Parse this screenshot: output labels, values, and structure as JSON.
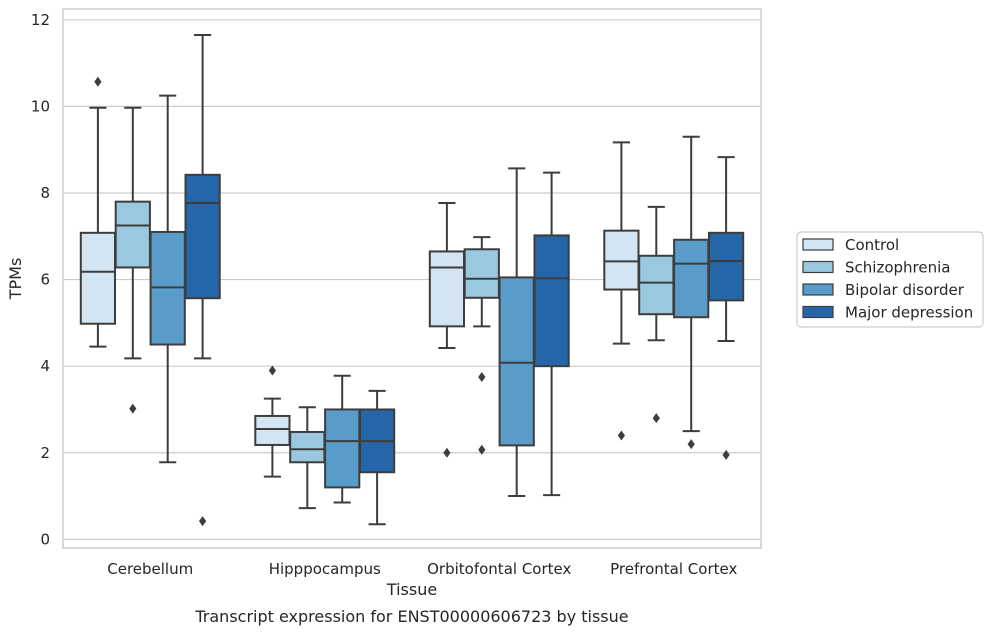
{
  "chart_data": {
    "type": "box",
    "title": "",
    "caption": "Transcript expression for ENST00000606723 by tissue",
    "xlabel": "Tissue",
    "ylabel": "TPMs",
    "ylim": [
      -0.2,
      12.25
    ],
    "yticks": [
      0,
      2,
      4,
      6,
      8,
      10,
      12
    ],
    "grid": "horizontal",
    "legend_position": "right",
    "categories": [
      "Cerebellum",
      "Hipppocampus",
      "Orbitofontal Cortex",
      "Prefrontal Cortex"
    ],
    "series": [
      {
        "name": "Control",
        "color": "#d3e4f3",
        "boxes": [
          {
            "whisker_low": 4.45,
            "q1": 4.98,
            "median": 6.18,
            "q3": 7.08,
            "whisker_high": 9.97,
            "outliers": [
              10.57
            ]
          },
          {
            "whisker_low": 1.45,
            "q1": 2.18,
            "median": 2.55,
            "q3": 2.85,
            "whisker_high": 3.25,
            "outliers": [
              3.9
            ]
          },
          {
            "whisker_low": 4.42,
            "q1": 4.92,
            "median": 6.28,
            "q3": 6.65,
            "whisker_high": 7.77,
            "outliers": [
              2.0
            ]
          },
          {
            "whisker_low": 4.52,
            "q1": 5.77,
            "median": 6.42,
            "q3": 7.13,
            "whisker_high": 9.17,
            "outliers": [
              2.4
            ]
          }
        ]
      },
      {
        "name": "Schizophrenia",
        "color": "#9ac8e0",
        "boxes": [
          {
            "whisker_low": 4.18,
            "q1": 6.28,
            "median": 7.25,
            "q3": 7.8,
            "whisker_high": 9.97,
            "outliers": [
              3.02
            ]
          },
          {
            "whisker_low": 0.72,
            "q1": 1.78,
            "median": 2.08,
            "q3": 2.48,
            "whisker_high": 3.05,
            "outliers": []
          },
          {
            "whisker_low": 4.92,
            "q1": 5.58,
            "median": 6.02,
            "q3": 6.7,
            "whisker_high": 6.98,
            "outliers": [
              3.75,
              2.07
            ]
          },
          {
            "whisker_low": 4.6,
            "q1": 5.2,
            "median": 5.93,
            "q3": 6.55,
            "whisker_high": 7.68,
            "outliers": [
              2.8
            ]
          }
        ]
      },
      {
        "name": "Bipolar disorder",
        "color": "#5a9cc9",
        "boxes": [
          {
            "whisker_low": 1.78,
            "q1": 4.5,
            "median": 5.82,
            "q3": 7.1,
            "whisker_high": 10.25,
            "outliers": []
          },
          {
            "whisker_low": 0.85,
            "q1": 1.2,
            "median": 2.27,
            "q3": 3.0,
            "whisker_high": 3.78,
            "outliers": []
          },
          {
            "whisker_low": 1.0,
            "q1": 2.17,
            "median": 4.08,
            "q3": 6.05,
            "whisker_high": 8.57,
            "outliers": []
          },
          {
            "whisker_low": 2.5,
            "q1": 5.13,
            "median": 6.37,
            "q3": 6.92,
            "whisker_high": 9.3,
            "outliers": [
              2.2
            ]
          }
        ]
      },
      {
        "name": "Major depression",
        "color": "#2566a8",
        "boxes": [
          {
            "whisker_low": 4.18,
            "q1": 5.57,
            "median": 7.77,
            "q3": 8.42,
            "whisker_high": 11.65,
            "outliers": [
              0.42
            ]
          },
          {
            "whisker_low": 0.35,
            "q1": 1.55,
            "median": 2.27,
            "q3": 3.0,
            "whisker_high": 3.43,
            "outliers": []
          },
          {
            "whisker_low": 1.02,
            "q1": 4.0,
            "median": 6.03,
            "q3": 7.02,
            "whisker_high": 8.47,
            "outliers": []
          },
          {
            "whisker_low": 4.58,
            "q1": 5.52,
            "median": 6.43,
            "q3": 7.08,
            "whisker_high": 8.83,
            "outliers": [
              1.95
            ]
          }
        ]
      }
    ]
  }
}
